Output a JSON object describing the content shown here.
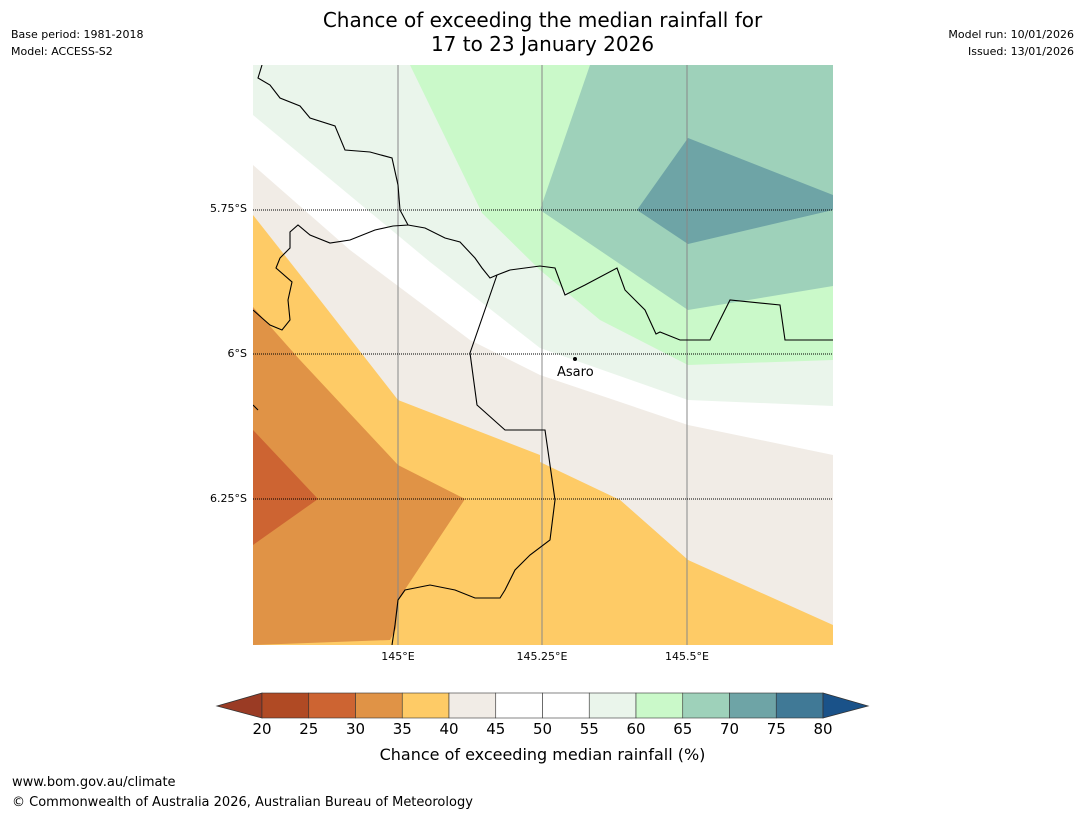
{
  "title": {
    "line1": "Chance of exceeding the median rainfall for",
    "line2": "17 to 23 January 2026"
  },
  "meta_left": {
    "base_period": "Base period: 1981-2018",
    "model": "Model: ACCESS-S2"
  },
  "meta_right": {
    "model_run": "Model run: 10/01/2026",
    "issued": "Issued: 13/01/2026"
  },
  "map": {
    "lat_labels": [
      "5.75°S",
      "6°S",
      "6.25°S"
    ],
    "lon_labels": [
      "145°E",
      "145.25°E",
      "145.5°E"
    ],
    "place": "Asaro"
  },
  "colorbar": {
    "ticks": [
      "20",
      "25",
      "30",
      "35",
      "40",
      "45",
      "50",
      "55",
      "60",
      "65",
      "70",
      "75",
      "80"
    ],
    "colors": [
      "#b04a24",
      "#cd6432",
      "#e09346",
      "#fecb66",
      "#f1ece6",
      "#ffffff",
      "#ffffff",
      "#eaf5eb",
      "#caf9c9",
      "#9ed1ba",
      "#6ea4a6",
      "#407996"
    ],
    "low_extend_color": "#9a3b24",
    "high_extend_color": "#1a5289",
    "label": "Chance of exceeding median rainfall (%)"
  },
  "footer": {
    "url": "www.bom.gov.au/climate",
    "copyright": "© Commonwealth of Australia 2026, Australian Bureau of Meteorology"
  }
}
